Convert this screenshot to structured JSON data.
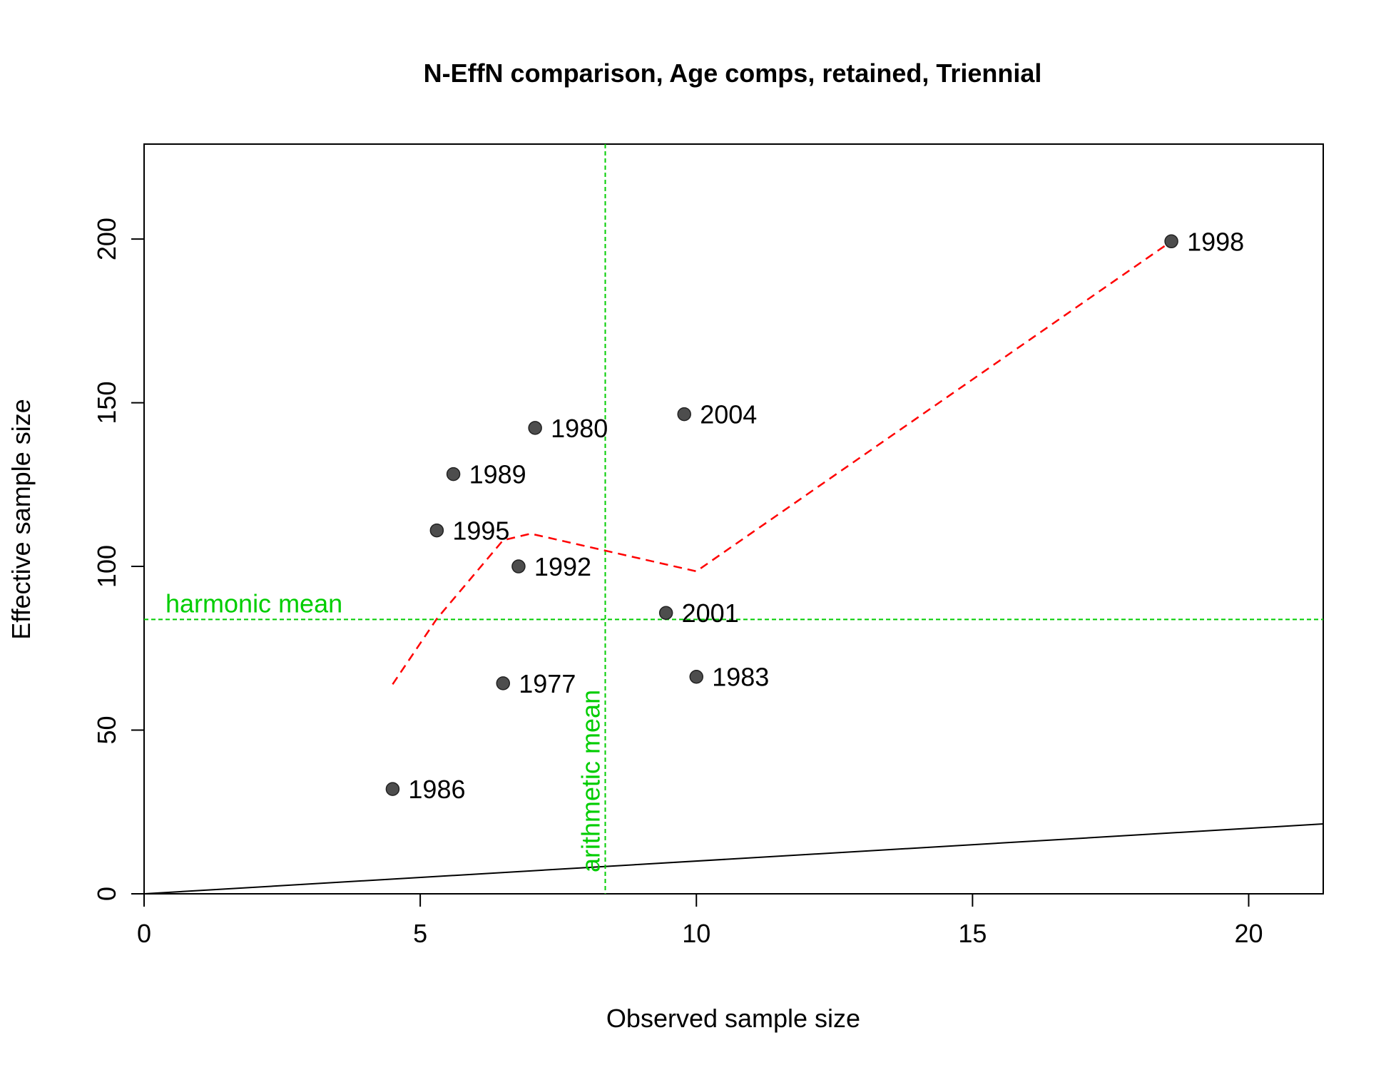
{
  "chart_data": {
    "type": "scatter",
    "title": "N-EffN comparison, Age comps, retained, Triennial",
    "xlabel": "Observed sample size",
    "ylabel": "Effective sample size",
    "xlim": [
      0,
      21.35
    ],
    "ylim": [
      0,
      229
    ],
    "x_ticks": [
      "0",
      "5",
      "10",
      "15",
      "20"
    ],
    "y_ticks": [
      "0",
      "50",
      "100",
      "150",
      "200"
    ],
    "grid": false,
    "points": [
      {
        "label": "1977",
        "x": 6.5,
        "y": 64.3
      },
      {
        "label": "1980",
        "x": 7.08,
        "y": 142.3
      },
      {
        "label": "1983",
        "x": 10.0,
        "y": 66.3
      },
      {
        "label": "1986",
        "x": 4.5,
        "y": 32.0
      },
      {
        "label": "1989",
        "x": 5.6,
        "y": 128.2
      },
      {
        "label": "1992",
        "x": 6.78,
        "y": 100.0
      },
      {
        "label": "1995",
        "x": 5.3,
        "y": 111.0
      },
      {
        "label": "1998",
        "x": 18.6,
        "y": 199.3
      },
      {
        "label": "2001",
        "x": 9.45,
        "y": 85.8
      },
      {
        "label": "2004",
        "x": 9.78,
        "y": 146.5
      }
    ],
    "smoother": {
      "x": [
        4.5,
        5.3,
        6.5,
        7.0,
        10.0,
        18.6
      ],
      "y": [
        64.0,
        84.0,
        108.0,
        110.0,
        98.5,
        199.3
      ]
    },
    "identity_line": {
      "slope": 1
    },
    "harmonic_mean": {
      "label": "harmonic mean",
      "value": 83.8
    },
    "arithmetic_mean": {
      "label": "arithmetic mean",
      "value": 8.35
    },
    "colors": {
      "points": "#4d4d4d",
      "smoother": "#ff0000",
      "reference": "#00cd00",
      "identity": "#000000"
    }
  }
}
